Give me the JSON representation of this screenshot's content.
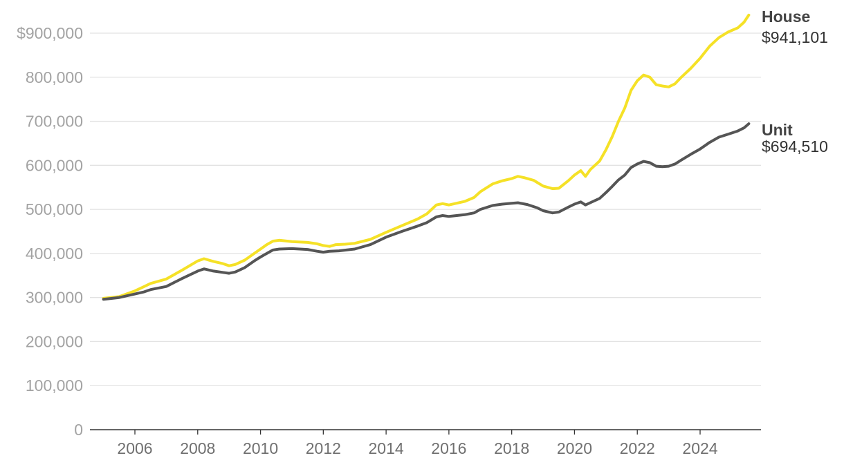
{
  "chart_data": {
    "type": "line",
    "title": "",
    "xlabel": "",
    "ylabel": "",
    "xlim": [
      2005,
      2025.6
    ],
    "ylim": [
      0,
      950000
    ],
    "grid": true,
    "legend": "end-labels-right",
    "y_ticks": [
      0,
      100000,
      200000,
      300000,
      400000,
      500000,
      600000,
      700000,
      800000,
      900000
    ],
    "y_tick_labels": [
      "0",
      "100,000",
      "200,000",
      "300,000",
      "400,000",
      "500,000",
      "600,000",
      "700,000",
      "800,000",
      "$900,000"
    ],
    "x_ticks": [
      2006,
      2008,
      2010,
      2012,
      2014,
      2016,
      2018,
      2020,
      2022,
      2024
    ],
    "x_tick_labels": [
      "2006",
      "2008",
      "2010",
      "2012",
      "2014",
      "2016",
      "2018",
      "2020",
      "2022",
      "2024"
    ],
    "series": [
      {
        "name": "House",
        "end_label": "$941,101",
        "color": "#f5e127",
        "points": [
          [
            2005.0,
            298000
          ],
          [
            2005.5,
            302000
          ],
          [
            2006.0,
            315000
          ],
          [
            2006.3,
            325000
          ],
          [
            2006.5,
            332000
          ],
          [
            2007.0,
            342000
          ],
          [
            2007.5,
            362000
          ],
          [
            2008.0,
            383000
          ],
          [
            2008.2,
            388000
          ],
          [
            2008.5,
            382000
          ],
          [
            2008.8,
            377000
          ],
          [
            2009.0,
            372000
          ],
          [
            2009.2,
            375000
          ],
          [
            2009.5,
            385000
          ],
          [
            2009.8,
            400000
          ],
          [
            2010.0,
            410000
          ],
          [
            2010.2,
            420000
          ],
          [
            2010.4,
            428000
          ],
          [
            2010.6,
            430000
          ],
          [
            2011.0,
            427000
          ],
          [
            2011.5,
            425000
          ],
          [
            2011.8,
            422000
          ],
          [
            2012.0,
            418000
          ],
          [
            2012.2,
            416000
          ],
          [
            2012.4,
            420000
          ],
          [
            2012.7,
            421000
          ],
          [
            2013.0,
            423000
          ],
          [
            2013.5,
            432000
          ],
          [
            2014.0,
            448000
          ],
          [
            2014.5,
            463000
          ],
          [
            2015.0,
            478000
          ],
          [
            2015.3,
            490000
          ],
          [
            2015.6,
            510000
          ],
          [
            2015.8,
            513000
          ],
          [
            2016.0,
            510000
          ],
          [
            2016.5,
            518000
          ],
          [
            2016.8,
            527000
          ],
          [
            2017.0,
            540000
          ],
          [
            2017.4,
            558000
          ],
          [
            2017.7,
            565000
          ],
          [
            2018.0,
            570000
          ],
          [
            2018.2,
            575000
          ],
          [
            2018.4,
            572000
          ],
          [
            2018.7,
            566000
          ],
          [
            2019.0,
            553000
          ],
          [
            2019.3,
            547000
          ],
          [
            2019.5,
            548000
          ],
          [
            2019.8,
            565000
          ],
          [
            2020.0,
            578000
          ],
          [
            2020.2,
            588000
          ],
          [
            2020.35,
            575000
          ],
          [
            2020.5,
            590000
          ],
          [
            2020.8,
            610000
          ],
          [
            2021.0,
            635000
          ],
          [
            2021.2,
            665000
          ],
          [
            2021.4,
            700000
          ],
          [
            2021.6,
            730000
          ],
          [
            2021.8,
            770000
          ],
          [
            2022.0,
            792000
          ],
          [
            2022.2,
            805000
          ],
          [
            2022.4,
            800000
          ],
          [
            2022.6,
            783000
          ],
          [
            2022.8,
            780000
          ],
          [
            2023.0,
            778000
          ],
          [
            2023.2,
            785000
          ],
          [
            2023.4,
            800000
          ],
          [
            2023.7,
            820000
          ],
          [
            2024.0,
            843000
          ],
          [
            2024.3,
            870000
          ],
          [
            2024.6,
            890000
          ],
          [
            2024.9,
            903000
          ],
          [
            2025.2,
            912000
          ],
          [
            2025.4,
            925000
          ],
          [
            2025.55,
            941101
          ]
        ]
      },
      {
        "name": "Unit",
        "end_label": "$694,510",
        "color": "#555555",
        "points": [
          [
            2005.0,
            296000
          ],
          [
            2005.5,
            300000
          ],
          [
            2006.0,
            308000
          ],
          [
            2006.3,
            313000
          ],
          [
            2006.5,
            318000
          ],
          [
            2007.0,
            325000
          ],
          [
            2007.5,
            343000
          ],
          [
            2008.0,
            360000
          ],
          [
            2008.2,
            365000
          ],
          [
            2008.5,
            360000
          ],
          [
            2008.8,
            357000
          ],
          [
            2009.0,
            355000
          ],
          [
            2009.2,
            358000
          ],
          [
            2009.5,
            368000
          ],
          [
            2009.8,
            383000
          ],
          [
            2010.0,
            392000
          ],
          [
            2010.2,
            400000
          ],
          [
            2010.4,
            408000
          ],
          [
            2010.6,
            410000
          ],
          [
            2011.0,
            411000
          ],
          [
            2011.5,
            409000
          ],
          [
            2011.8,
            405000
          ],
          [
            2012.0,
            403000
          ],
          [
            2012.2,
            405000
          ],
          [
            2012.5,
            406000
          ],
          [
            2013.0,
            410000
          ],
          [
            2013.5,
            420000
          ],
          [
            2014.0,
            437000
          ],
          [
            2014.5,
            450000
          ],
          [
            2015.0,
            462000
          ],
          [
            2015.3,
            470000
          ],
          [
            2015.6,
            483000
          ],
          [
            2015.8,
            486000
          ],
          [
            2016.0,
            484000
          ],
          [
            2016.5,
            488000
          ],
          [
            2016.8,
            492000
          ],
          [
            2017.0,
            500000
          ],
          [
            2017.4,
            509000
          ],
          [
            2017.7,
            512000
          ],
          [
            2018.0,
            514000
          ],
          [
            2018.2,
            515000
          ],
          [
            2018.5,
            511000
          ],
          [
            2018.8,
            504000
          ],
          [
            2019.0,
            497000
          ],
          [
            2019.3,
            492000
          ],
          [
            2019.5,
            494000
          ],
          [
            2019.8,
            505000
          ],
          [
            2020.0,
            512000
          ],
          [
            2020.2,
            517000
          ],
          [
            2020.35,
            510000
          ],
          [
            2020.5,
            515000
          ],
          [
            2020.8,
            525000
          ],
          [
            2021.0,
            538000
          ],
          [
            2021.2,
            552000
          ],
          [
            2021.4,
            567000
          ],
          [
            2021.6,
            578000
          ],
          [
            2021.8,
            595000
          ],
          [
            2022.0,
            603000
          ],
          [
            2022.2,
            609000
          ],
          [
            2022.4,
            606000
          ],
          [
            2022.6,
            598000
          ],
          [
            2022.8,
            597000
          ],
          [
            2023.0,
            598000
          ],
          [
            2023.2,
            603000
          ],
          [
            2023.4,
            612000
          ],
          [
            2023.7,
            625000
          ],
          [
            2024.0,
            637000
          ],
          [
            2024.3,
            652000
          ],
          [
            2024.6,
            664000
          ],
          [
            2024.9,
            671000
          ],
          [
            2025.2,
            678000
          ],
          [
            2025.4,
            685000
          ],
          [
            2025.55,
            694510
          ]
        ]
      }
    ]
  }
}
